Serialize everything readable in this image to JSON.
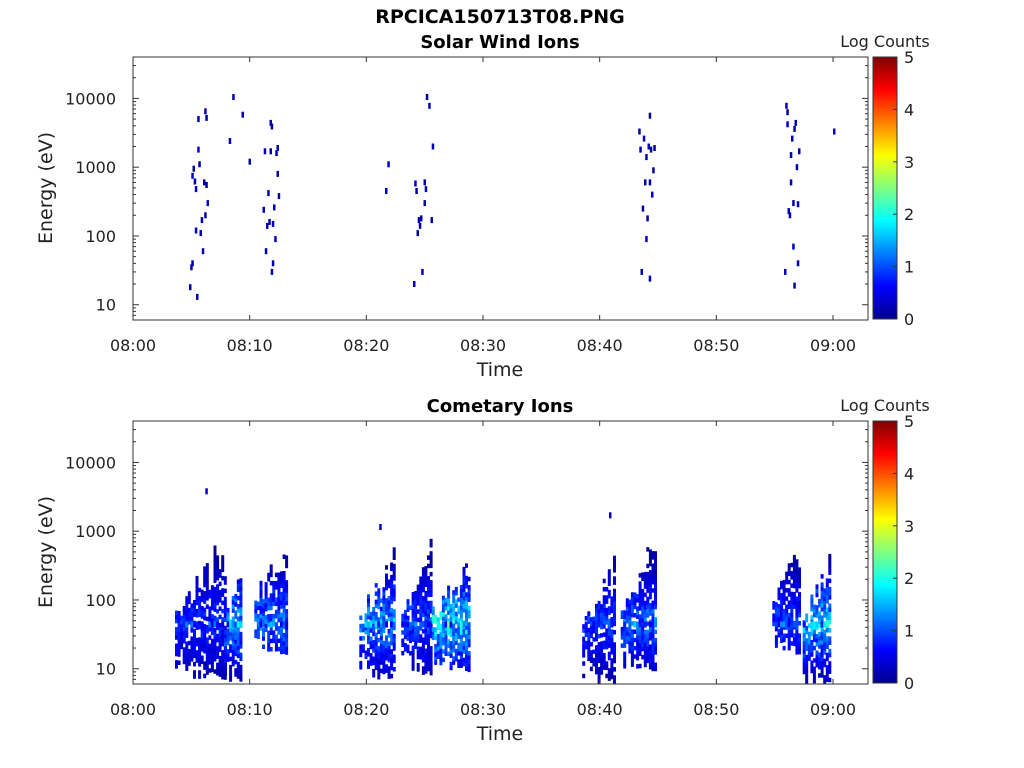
{
  "figure": {
    "title": "RPCICA150713T08.PNG"
  },
  "chart_data": [
    {
      "type": "heatmap",
      "title": "Solar Wind Ions",
      "xlabel": "Time",
      "ylabel": "Energy (eV)",
      "x_ticks": [
        "08:00",
        "08:10",
        "08:20",
        "08:30",
        "08:40",
        "08:50",
        "09:00"
      ],
      "x_range_minutes": [
        0,
        63
      ],
      "y_scale": "log",
      "y_ticks": [
        "10",
        "100",
        "1000",
        "10000"
      ],
      "y_range": [
        6,
        40000
      ],
      "colorbar": {
        "label": "Log Counts",
        "range": [
          0,
          5
        ],
        "ticks": [
          "0",
          "1",
          "2",
          "3",
          "4",
          "5"
        ]
      },
      "points": [
        [
          4.8,
          18,
          0.2
        ],
        [
          4.9,
          35,
          0.3
        ],
        [
          5.0,
          40,
          0.2
        ],
        [
          5.0,
          750,
          0.3
        ],
        [
          5.1,
          950,
          0.2
        ],
        [
          5.2,
          620,
          0.2
        ],
        [
          5.3,
          480,
          0.3
        ],
        [
          5.3,
          120,
          0.3
        ],
        [
          5.4,
          13,
          0.2
        ],
        [
          5.5,
          1800,
          0.3
        ],
        [
          5.5,
          5000,
          0.2
        ],
        [
          5.6,
          1100,
          0.2
        ],
        [
          5.7,
          110,
          0.2
        ],
        [
          5.8,
          170,
          0.3
        ],
        [
          5.9,
          60,
          0.2
        ],
        [
          6.0,
          600,
          0.2
        ],
        [
          6.1,
          6500,
          0.3
        ],
        [
          6.1,
          200,
          0.2
        ],
        [
          6.2,
          5200,
          0.2
        ],
        [
          6.2,
          550,
          0.2
        ],
        [
          6.3,
          300,
          0.3
        ],
        [
          8.2,
          2400,
          0.3
        ],
        [
          8.5,
          10500,
          0.3
        ],
        [
          9.3,
          5800,
          0.2
        ],
        [
          9.9,
          1200,
          0.3
        ],
        [
          11.1,
          240,
          0.2
        ],
        [
          11.2,
          1700,
          0.3
        ],
        [
          11.3,
          60,
          0.2
        ],
        [
          11.4,
          140,
          0.3
        ],
        [
          11.5,
          420,
          0.2
        ],
        [
          11.6,
          160,
          0.2
        ],
        [
          11.7,
          4400,
          0.3
        ],
        [
          11.7,
          1700,
          0.2
        ],
        [
          11.8,
          3900,
          0.2
        ],
        [
          11.8,
          30,
          0.3
        ],
        [
          11.9,
          40,
          0.2
        ],
        [
          11.9,
          150,
          0.3
        ],
        [
          12.0,
          260,
          0.2
        ],
        [
          12.1,
          90,
          0.3
        ],
        [
          12.2,
          1600,
          0.2
        ],
        [
          12.3,
          1900,
          0.3
        ],
        [
          12.3,
          800,
          0.2
        ],
        [
          12.4,
          380,
          0.2
        ],
        [
          21.6,
          450,
          0.2
        ],
        [
          21.8,
          1100,
          0.3
        ],
        [
          24.0,
          20,
          0.2
        ],
        [
          24.1,
          580,
          0.3
        ],
        [
          24.2,
          450,
          0.2
        ],
        [
          24.3,
          110,
          0.2
        ],
        [
          24.4,
          170,
          0.3
        ],
        [
          24.5,
          140,
          0.2
        ],
        [
          24.6,
          180,
          0.2
        ],
        [
          24.7,
          30,
          0.3
        ],
        [
          24.9,
          600,
          0.2
        ],
        [
          24.9,
          300,
          0.2
        ],
        [
          25.0,
          480,
          0.3
        ],
        [
          25.1,
          10500,
          0.2
        ],
        [
          25.3,
          7800,
          0.3
        ],
        [
          25.5,
          170,
          0.2
        ],
        [
          25.6,
          2000,
          0.3
        ],
        [
          43.3,
          3300,
          0.2
        ],
        [
          43.4,
          1800,
          0.3
        ],
        [
          43.5,
          30,
          0.2
        ],
        [
          43.6,
          250,
          0.2
        ],
        [
          43.7,
          2600,
          0.3
        ],
        [
          43.8,
          600,
          0.2
        ],
        [
          43.9,
          90,
          0.3
        ],
        [
          43.9,
          1400,
          0.2
        ],
        [
          44.0,
          180,
          0.2
        ],
        [
          44.1,
          2000,
          0.3
        ],
        [
          44.2,
          600,
          0.2
        ],
        [
          44.2,
          24,
          0.3
        ],
        [
          44.2,
          5600,
          0.2
        ],
        [
          44.3,
          1800,
          0.2
        ],
        [
          44.4,
          400,
          0.3
        ],
        [
          44.5,
          900,
          0.2
        ],
        [
          44.6,
          1900,
          0.2
        ],
        [
          55.8,
          30,
          0.3
        ],
        [
          55.9,
          7800,
          0.2
        ],
        [
          56.0,
          6300,
          0.2
        ],
        [
          56.0,
          4200,
          0.3
        ],
        [
          56.1,
          230,
          0.2
        ],
        [
          56.2,
          200,
          0.3
        ],
        [
          56.3,
          600,
          0.2
        ],
        [
          56.3,
          1500,
          0.2
        ],
        [
          56.4,
          2600,
          0.3
        ],
        [
          56.5,
          300,
          0.2
        ],
        [
          56.5,
          70,
          0.3
        ],
        [
          56.6,
          3600,
          0.2
        ],
        [
          56.6,
          19,
          0.2
        ],
        [
          56.7,
          4400,
          0.3
        ],
        [
          56.8,
          1000,
          0.2
        ],
        [
          56.9,
          40,
          0.2
        ],
        [
          56.9,
          290,
          0.3
        ],
        [
          57.0,
          1700,
          0.2
        ],
        [
          60.0,
          3300,
          0.3
        ]
      ]
    },
    {
      "type": "heatmap",
      "title": "Cometary Ions",
      "xlabel": "Time",
      "ylabel": "Energy (eV)",
      "x_ticks": [
        "08:00",
        "08:10",
        "08:20",
        "08:30",
        "08:40",
        "08:50",
        "09:00"
      ],
      "x_range_minutes": [
        0,
        63
      ],
      "y_scale": "log",
      "y_ticks": [
        "10",
        "100",
        "1000",
        "10000"
      ],
      "y_range": [
        6,
        40000
      ],
      "colorbar": {
        "label": "Log Counts",
        "range": [
          0,
          5
        ],
        "ticks": [
          "0",
          "1",
          "2",
          "3",
          "4",
          "5"
        ]
      },
      "blobs": [
        {
          "t0": 3.6,
          "t1": 7.8,
          "e0": 7,
          "e1": 900,
          "cmax": 0.9
        },
        {
          "t0": 7.8,
          "t1": 9.3,
          "e0": 6,
          "e1": 400,
          "cmax": 1.7
        },
        {
          "t0": 10.4,
          "t1": 13.2,
          "e0": 16,
          "e1": 1100,
          "cmax": 1.4
        },
        {
          "t0": 19.4,
          "t1": 22.3,
          "e0": 7,
          "e1": 600,
          "cmax": 1.6
        },
        {
          "t0": 23.0,
          "t1": 25.6,
          "e0": 8,
          "e1": 1000,
          "cmax": 1.1
        },
        {
          "t0": 25.6,
          "t1": 28.8,
          "e0": 9,
          "e1": 600,
          "cmax": 2.2
        },
        {
          "t0": 38.5,
          "t1": 41.2,
          "e0": 6,
          "e1": 600,
          "cmax": 1.0
        },
        {
          "t0": 41.8,
          "t1": 44.8,
          "e0": 9,
          "e1": 1000,
          "cmax": 1.3
        },
        {
          "t0": 54.8,
          "t1": 57.2,
          "e0": 16,
          "e1": 900,
          "cmax": 1.0
        },
        {
          "t0": 57.4,
          "t1": 59.8,
          "e0": 6,
          "e1": 600,
          "cmax": 1.9
        }
      ],
      "points": [
        [
          6.2,
          3800,
          0.3
        ],
        [
          21.1,
          1150,
          0.3
        ],
        [
          40.8,
          1700,
          0.3
        ]
      ]
    }
  ]
}
